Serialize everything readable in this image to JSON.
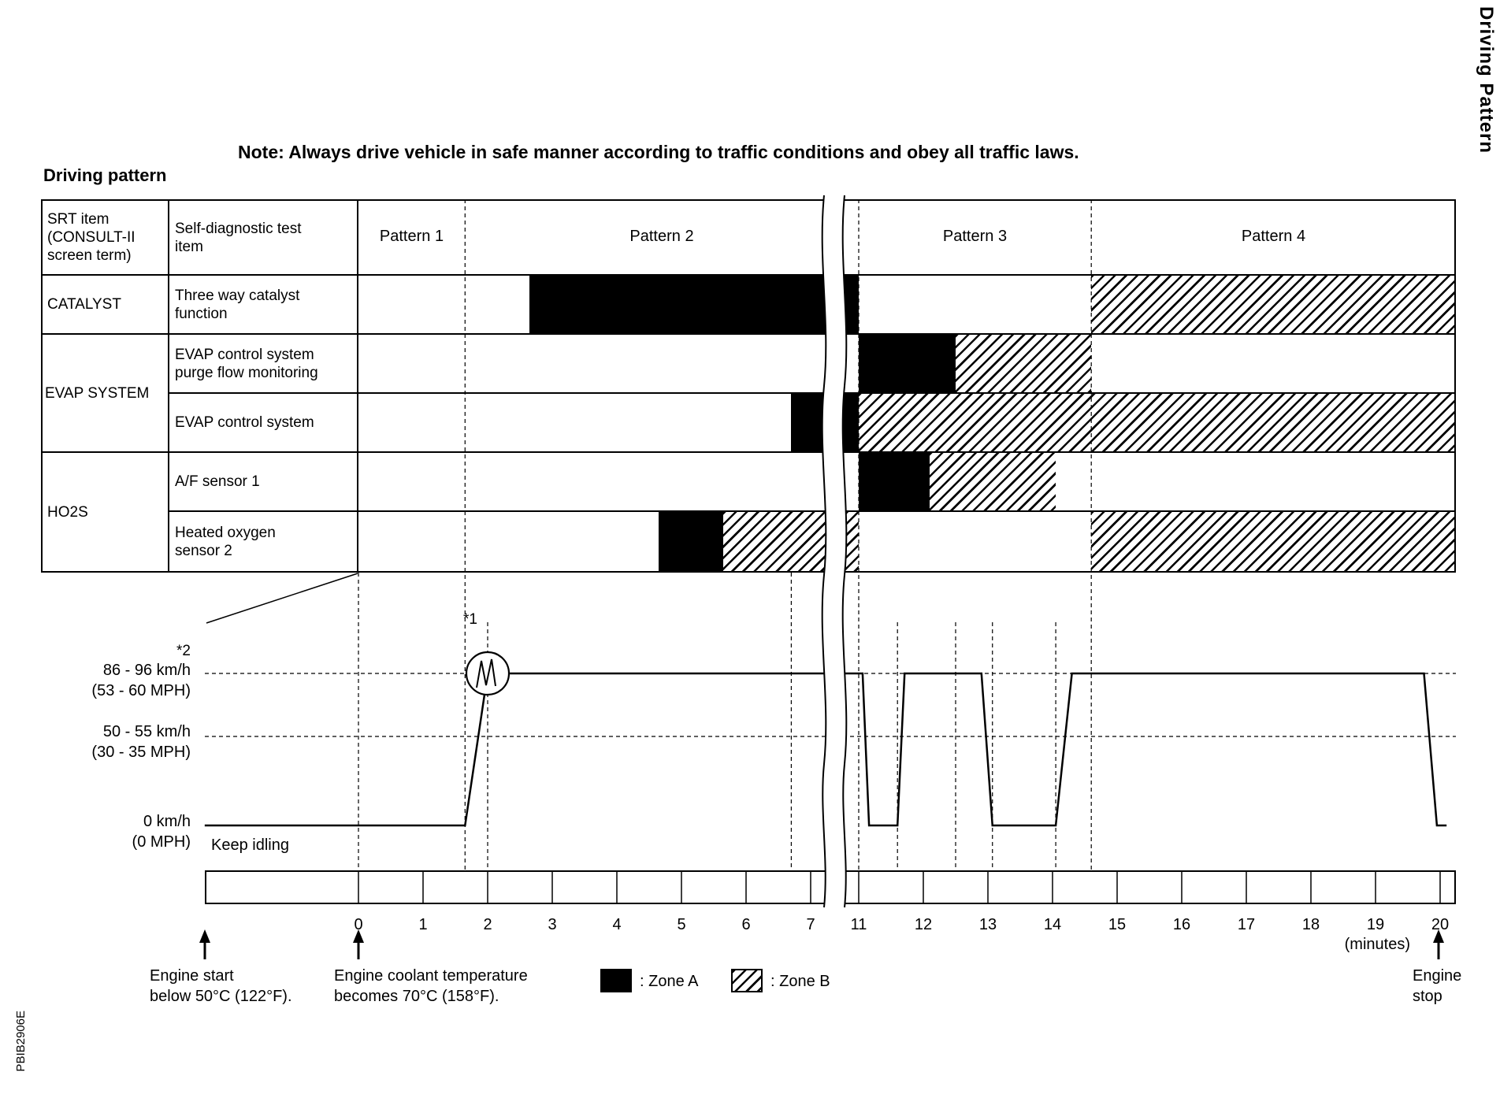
{
  "page": {
    "side_title": "Driving Pattern",
    "note": "Note: Always drive vehicle in safe manner according to traffic conditions and obey all traffic laws.",
    "heading": "Driving pattern",
    "figure_code": "PBIB2906E"
  },
  "table": {
    "headers": {
      "col1": "SRT item\n(CONSULT-II\nscreen term)",
      "col2": "Self-diagnostic test\nitem"
    },
    "patterns": [
      {
        "label": "Pattern 1",
        "t0": 0,
        "t1": 1.65
      },
      {
        "label": "Pattern 2",
        "t0": 1.65,
        "t1": 11
      },
      {
        "label": "Pattern 3",
        "t0": 11,
        "t1": 14.6
      },
      {
        "label": "Pattern 4",
        "t0": 14.6,
        "t1": 20.25
      }
    ],
    "srt_groups": [
      {
        "label": "CATALYST",
        "row_span": 1
      },
      {
        "label": "EVAP SYSTEM",
        "row_span": 2
      },
      {
        "label": "HO2S",
        "row_span": 2
      }
    ],
    "rows": [
      {
        "test": "Three way catalyst\nfunction",
        "zones": [
          {
            "type": "A",
            "t0": 2.65,
            "t1": 11
          },
          {
            "type": "B",
            "t0": 14.6,
            "t1": 20.25
          }
        ]
      },
      {
        "test": "EVAP control system\npurge flow monitoring",
        "zones": [
          {
            "type": "A",
            "t0": 11,
            "t1": 12.5
          },
          {
            "type": "B",
            "t0": 12.5,
            "t1": 14.6
          }
        ]
      },
      {
        "test": "EVAP control system",
        "zones": [
          {
            "type": "A",
            "t0": 6.7,
            "t1": 11
          },
          {
            "type": "B",
            "t0": 11,
            "t1": 20.25
          }
        ]
      },
      {
        "test": "A/F sensor 1",
        "zones": [
          {
            "type": "A",
            "t0": 11,
            "t1": 12.1
          },
          {
            "type": "B",
            "t0": 12.1,
            "t1": 14.05
          }
        ]
      },
      {
        "test": "Heated oxygen\nsensor 2",
        "zones": [
          {
            "type": "A",
            "t0": 4.65,
            "t1": 5.65
          },
          {
            "type": "B",
            "t0": 5.65,
            "t1": 11
          },
          {
            "type": "B",
            "t0": 14.6,
            "t1": 20.25
          }
        ]
      }
    ]
  },
  "chart_data": {
    "type": "line",
    "title": "Driving pattern",
    "x_label": "(minutes)",
    "x_ticks": [
      0,
      1,
      2,
      3,
      4,
      5,
      6,
      7,
      11,
      12,
      13,
      14,
      15,
      16,
      17,
      18,
      19,
      20
    ],
    "x_break_between": [
      7,
      11
    ],
    "y_levels": [
      {
        "label": "86 - 96 km/h",
        "sublabel": "(53 - 60 MPH)",
        "kmh": 91,
        "marker": "*2"
      },
      {
        "label": "50 - 55 km/h",
        "sublabel": "(30 - 35 MPH)",
        "kmh": 52.5
      },
      {
        "label": "0 km/h",
        "sublabel": "(0 MPH)",
        "kmh": 0
      }
    ],
    "idle_label": "Keep idling",
    "accel_marker": "*1",
    "speed_profile_t_kmh": [
      [
        -2.38,
        0
      ],
      [
        1.65,
        0
      ],
      [
        2,
        91
      ],
      [
        11.06,
        91
      ],
      [
        11.16,
        0
      ],
      [
        11.6,
        0
      ],
      [
        11.71,
        91
      ],
      [
        12.9,
        91
      ],
      [
        13.07,
        0
      ],
      [
        14.05,
        0
      ],
      [
        14.3,
        91
      ],
      [
        19.75,
        91
      ],
      [
        19.95,
        0
      ],
      [
        20.1,
        0
      ]
    ],
    "annotations": [
      {
        "t": -2.38,
        "text": "Engine start\nbelow 50°C (122°F)."
      },
      {
        "t": 0,
        "text": "Engine coolant temperature\nbecomes 70°C (158°F)."
      },
      {
        "t": 19.97,
        "text": "Engine\nstop"
      }
    ],
    "legend": [
      {
        "zone": "A",
        "label": ": Zone A"
      },
      {
        "zone": "B",
        "label": ": Zone B"
      }
    ]
  }
}
